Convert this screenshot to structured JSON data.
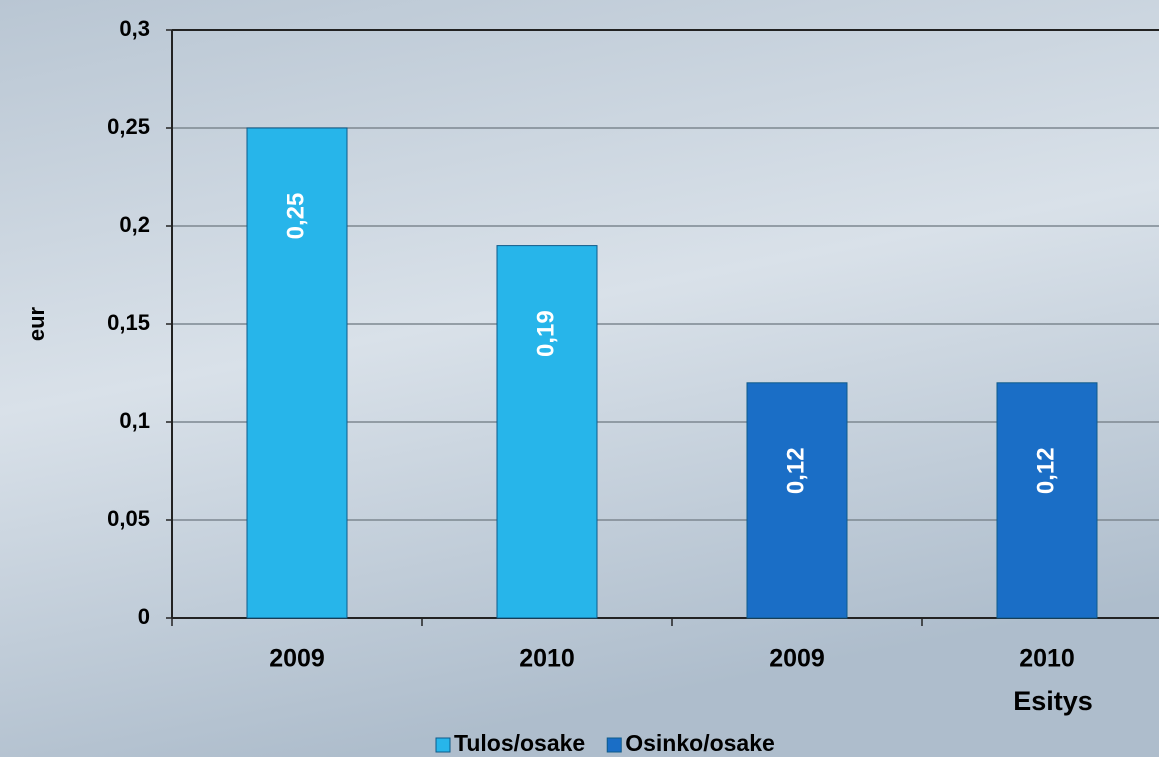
{
  "chart_data": {
    "type": "bar",
    "categories": [
      "2009",
      "2010",
      "2009",
      "2010"
    ],
    "series": [
      {
        "name": "Tulos/osake",
        "color": "#27b5ea",
        "values": [
          0.25,
          0.19,
          null,
          null
        ],
        "value_labels": [
          "0,25",
          "0,19",
          null,
          null
        ]
      },
      {
        "name": "Osinko/osake",
        "color": "#1a6ec6",
        "values": [
          null,
          null,
          0.12,
          0.12
        ],
        "value_labels": [
          null,
          null,
          "0,12",
          "0,12"
        ]
      }
    ],
    "y_axis_label": "eur",
    "annotation": "Esitys",
    "ylim": [
      0,
      0.3
    ],
    "yticks": [
      {
        "value": 0,
        "label": "0"
      },
      {
        "value": 0.05,
        "label": "0,05"
      },
      {
        "value": 0.1,
        "label": "0,1"
      },
      {
        "value": 0.15,
        "label": "0,15"
      },
      {
        "value": 0.2,
        "label": "0,2"
      },
      {
        "value": 0.25,
        "label": "0,25"
      },
      {
        "value": 0.3,
        "label": "0,3"
      }
    ],
    "grid": true,
    "legend": "bottom"
  }
}
